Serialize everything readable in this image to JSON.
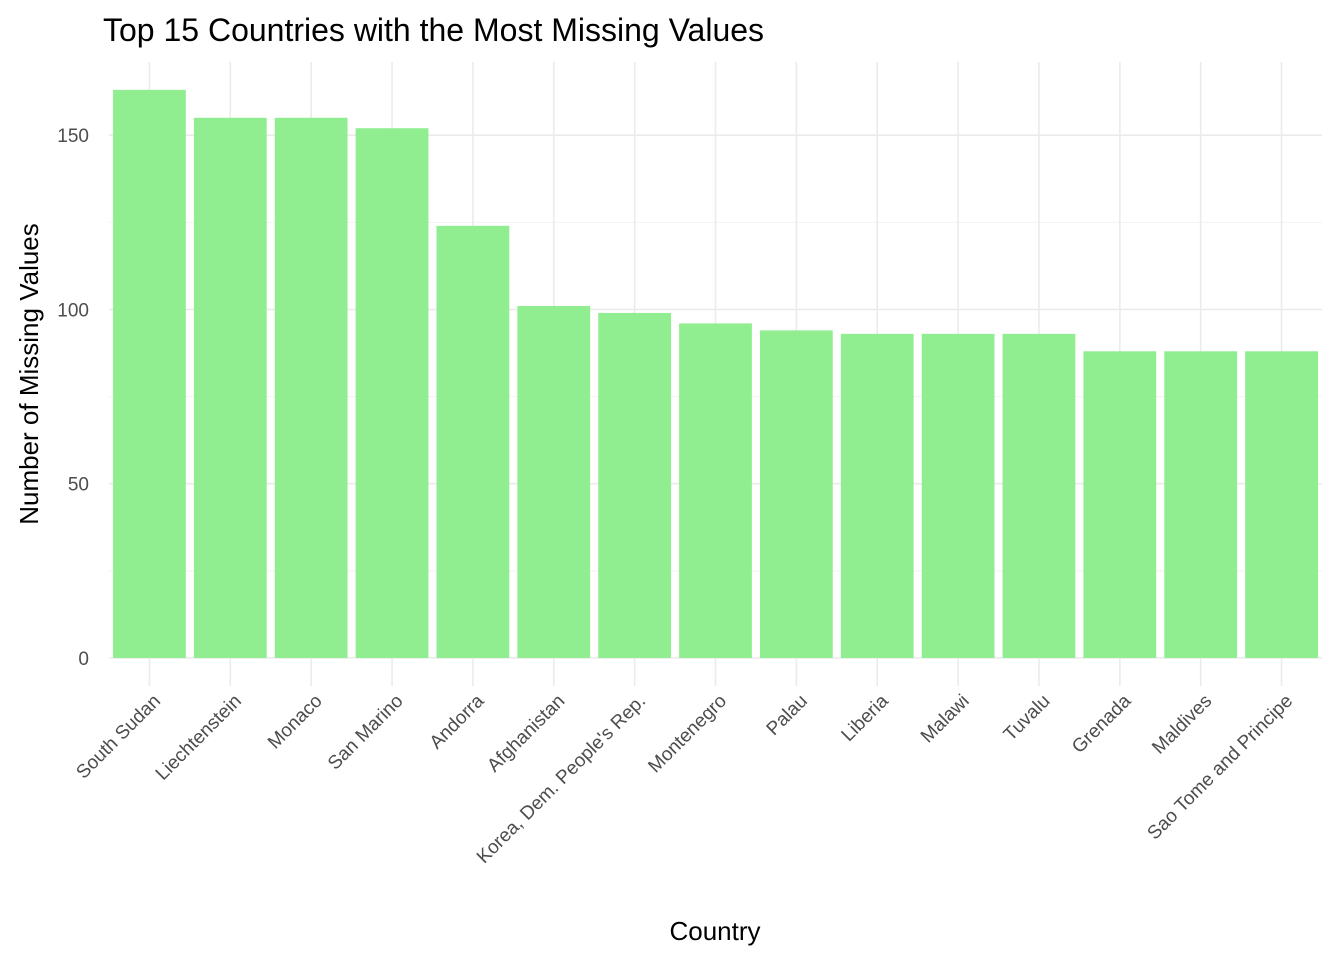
{
  "chart_data": {
    "type": "bar",
    "title": "Top 15 Countries with the Most Missing Values",
    "xlabel": "Country",
    "ylabel": "Number of Missing Values",
    "categories": [
      "South Sudan",
      "Liechtenstein",
      "Monaco",
      "San Marino",
      "Andorra",
      "Afghanistan",
      "Korea, Dem. People's Rep.",
      "Montenegro",
      "Palau",
      "Liberia",
      "Malawi",
      "Tuvalu",
      "Grenada",
      "Maldives",
      "Sao Tome and Principe"
    ],
    "values": [
      163,
      155,
      155,
      152,
      124,
      101,
      99,
      96,
      94,
      93,
      93,
      93,
      88,
      88,
      88
    ],
    "yticks": [
      0,
      50,
      100,
      150
    ],
    "ylim": [
      0,
      163
    ],
    "grid": true,
    "bar_color": "#90ee90"
  }
}
